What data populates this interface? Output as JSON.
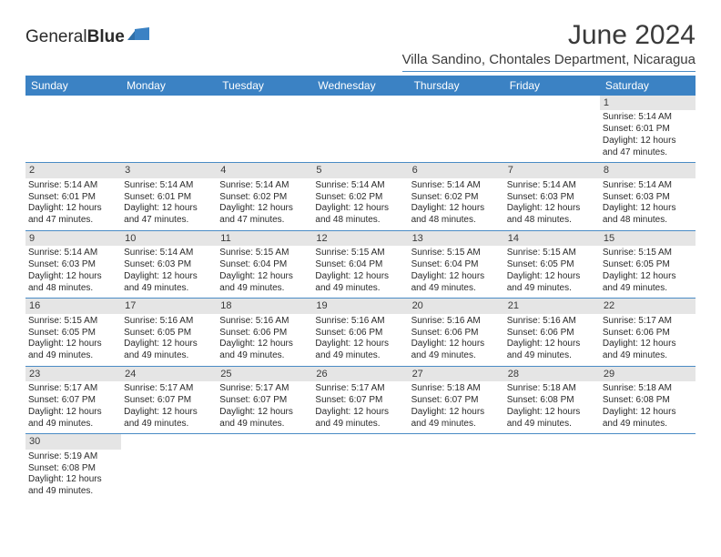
{
  "brand": {
    "name_part1": "General",
    "name_part2": "Blue"
  },
  "title": "June 2024",
  "location": "Villa Sandino, Chontales Department, Nicaragua",
  "colors": {
    "header_bg": "#3b82c4",
    "header_text": "#ffffff",
    "divider": "#4a8bc5",
    "daynum_bg": "#e5e5e5",
    "text": "#2a2a2a"
  },
  "day_headers": [
    "Sunday",
    "Monday",
    "Tuesday",
    "Wednesday",
    "Thursday",
    "Friday",
    "Saturday"
  ],
  "weeks": [
    [
      null,
      null,
      null,
      null,
      null,
      null,
      {
        "n": "1",
        "sunrise": "5:14 AM",
        "sunset": "6:01 PM",
        "daylight": "12 hours and 47 minutes."
      }
    ],
    [
      {
        "n": "2",
        "sunrise": "5:14 AM",
        "sunset": "6:01 PM",
        "daylight": "12 hours and 47 minutes."
      },
      {
        "n": "3",
        "sunrise": "5:14 AM",
        "sunset": "6:01 PM",
        "daylight": "12 hours and 47 minutes."
      },
      {
        "n": "4",
        "sunrise": "5:14 AM",
        "sunset": "6:02 PM",
        "daylight": "12 hours and 47 minutes."
      },
      {
        "n": "5",
        "sunrise": "5:14 AM",
        "sunset": "6:02 PM",
        "daylight": "12 hours and 48 minutes."
      },
      {
        "n": "6",
        "sunrise": "5:14 AM",
        "sunset": "6:02 PM",
        "daylight": "12 hours and 48 minutes."
      },
      {
        "n": "7",
        "sunrise": "5:14 AM",
        "sunset": "6:03 PM",
        "daylight": "12 hours and 48 minutes."
      },
      {
        "n": "8",
        "sunrise": "5:14 AM",
        "sunset": "6:03 PM",
        "daylight": "12 hours and 48 minutes."
      }
    ],
    [
      {
        "n": "9",
        "sunrise": "5:14 AM",
        "sunset": "6:03 PM",
        "daylight": "12 hours and 48 minutes."
      },
      {
        "n": "10",
        "sunrise": "5:14 AM",
        "sunset": "6:03 PM",
        "daylight": "12 hours and 49 minutes."
      },
      {
        "n": "11",
        "sunrise": "5:15 AM",
        "sunset": "6:04 PM",
        "daylight": "12 hours and 49 minutes."
      },
      {
        "n": "12",
        "sunrise": "5:15 AM",
        "sunset": "6:04 PM",
        "daylight": "12 hours and 49 minutes."
      },
      {
        "n": "13",
        "sunrise": "5:15 AM",
        "sunset": "6:04 PM",
        "daylight": "12 hours and 49 minutes."
      },
      {
        "n": "14",
        "sunrise": "5:15 AM",
        "sunset": "6:05 PM",
        "daylight": "12 hours and 49 minutes."
      },
      {
        "n": "15",
        "sunrise": "5:15 AM",
        "sunset": "6:05 PM",
        "daylight": "12 hours and 49 minutes."
      }
    ],
    [
      {
        "n": "16",
        "sunrise": "5:15 AM",
        "sunset": "6:05 PM",
        "daylight": "12 hours and 49 minutes."
      },
      {
        "n": "17",
        "sunrise": "5:16 AM",
        "sunset": "6:05 PM",
        "daylight": "12 hours and 49 minutes."
      },
      {
        "n": "18",
        "sunrise": "5:16 AM",
        "sunset": "6:06 PM",
        "daylight": "12 hours and 49 minutes."
      },
      {
        "n": "19",
        "sunrise": "5:16 AM",
        "sunset": "6:06 PM",
        "daylight": "12 hours and 49 minutes."
      },
      {
        "n": "20",
        "sunrise": "5:16 AM",
        "sunset": "6:06 PM",
        "daylight": "12 hours and 49 minutes."
      },
      {
        "n": "21",
        "sunrise": "5:16 AM",
        "sunset": "6:06 PM",
        "daylight": "12 hours and 49 minutes."
      },
      {
        "n": "22",
        "sunrise": "5:17 AM",
        "sunset": "6:06 PM",
        "daylight": "12 hours and 49 minutes."
      }
    ],
    [
      {
        "n": "23",
        "sunrise": "5:17 AM",
        "sunset": "6:07 PM",
        "daylight": "12 hours and 49 minutes."
      },
      {
        "n": "24",
        "sunrise": "5:17 AM",
        "sunset": "6:07 PM",
        "daylight": "12 hours and 49 minutes."
      },
      {
        "n": "25",
        "sunrise": "5:17 AM",
        "sunset": "6:07 PM",
        "daylight": "12 hours and 49 minutes."
      },
      {
        "n": "26",
        "sunrise": "5:17 AM",
        "sunset": "6:07 PM",
        "daylight": "12 hours and 49 minutes."
      },
      {
        "n": "27",
        "sunrise": "5:18 AM",
        "sunset": "6:07 PM",
        "daylight": "12 hours and 49 minutes."
      },
      {
        "n": "28",
        "sunrise": "5:18 AM",
        "sunset": "6:08 PM",
        "daylight": "12 hours and 49 minutes."
      },
      {
        "n": "29",
        "sunrise": "5:18 AM",
        "sunset": "6:08 PM",
        "daylight": "12 hours and 49 minutes."
      }
    ],
    [
      {
        "n": "30",
        "sunrise": "5:19 AM",
        "sunset": "6:08 PM",
        "daylight": "12 hours and 49 minutes."
      },
      null,
      null,
      null,
      null,
      null,
      null
    ]
  ],
  "labels": {
    "sunrise_prefix": "Sunrise: ",
    "sunset_prefix": "Sunset: ",
    "daylight_prefix": "Daylight: "
  }
}
